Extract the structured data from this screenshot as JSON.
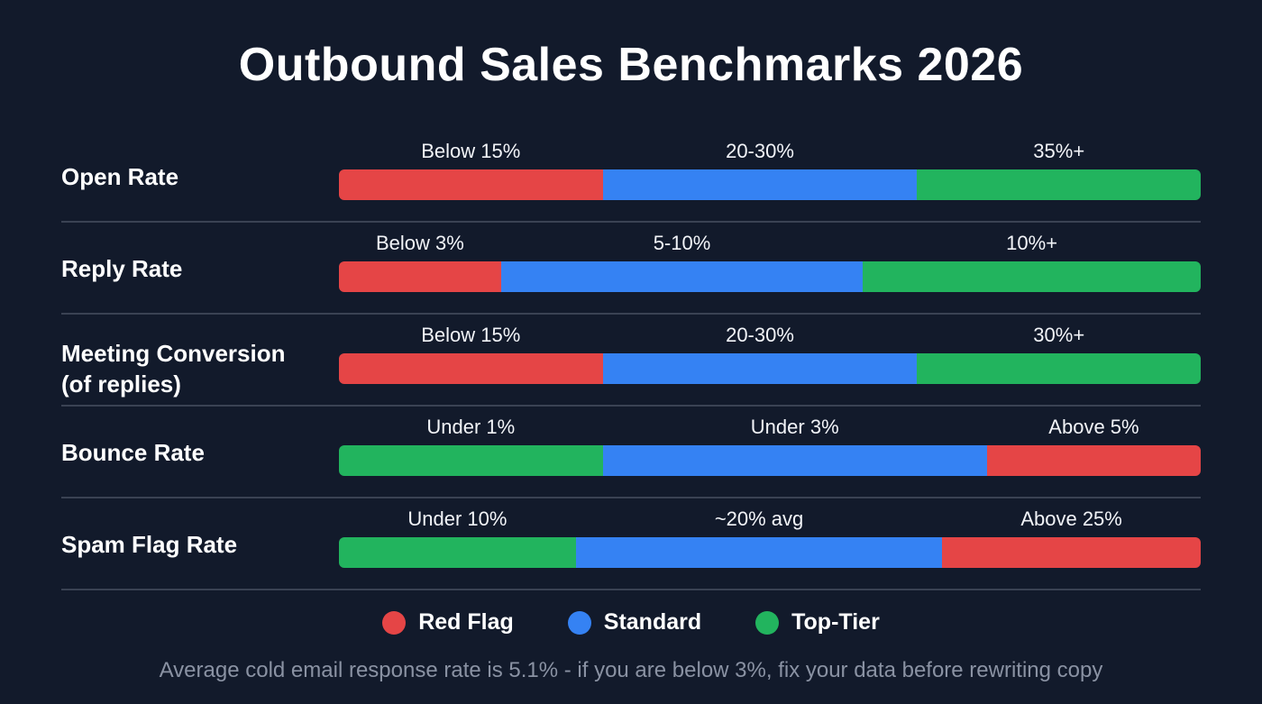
{
  "title": "Outbound Sales Benchmarks 2026",
  "colors": {
    "red_flag": "#e54546",
    "standard": "#3582f3",
    "top_tier": "#22b45e",
    "background": "#121a2b"
  },
  "chart_data": {
    "type": "bar",
    "stacked": true,
    "orientation": "horizontal",
    "title": "Outbound Sales Benchmarks 2026",
    "unit": "share of bar (%)",
    "rows": [
      {
        "label": "Open Rate",
        "segments": [
          {
            "tier": "Red Flag",
            "text": "Below 15%",
            "share": 30.6
          },
          {
            "tier": "Standard",
            "text": "20-30%",
            "share": 36.5
          },
          {
            "tier": "Top-Tier",
            "text": "35%+",
            "share": 32.9
          }
        ]
      },
      {
        "label": "Reply Rate",
        "segments": [
          {
            "tier": "Red Flag",
            "text": "Below 3%",
            "share": 18.8
          },
          {
            "tier": "Standard",
            "text": "5-10%",
            "share": 42.0
          },
          {
            "tier": "Top-Tier",
            "text": "10%+",
            "share": 39.2
          }
        ]
      },
      {
        "label": "Meeting Conversion\n(of replies)",
        "segments": [
          {
            "tier": "Red Flag",
            "text": "Below 15%",
            "share": 30.6
          },
          {
            "tier": "Standard",
            "text": "20-30%",
            "share": 36.5
          },
          {
            "tier": "Top-Tier",
            "text": "30%+",
            "share": 32.9
          }
        ]
      },
      {
        "label": "Bounce Rate",
        "segments": [
          {
            "tier": "Top-Tier",
            "text": "Under 1%",
            "share": 30.6
          },
          {
            "tier": "Standard",
            "text": "Under 3%",
            "share": 44.6
          },
          {
            "tier": "Red Flag",
            "text": "Above 5%",
            "share": 24.8
          }
        ]
      },
      {
        "label": "Spam Flag Rate",
        "segments": [
          {
            "tier": "Top-Tier",
            "text": "Under 10%",
            "share": 27.5
          },
          {
            "tier": "Standard",
            "text": "~20% avg",
            "share": 42.5
          },
          {
            "tier": "Red Flag",
            "text": "Above 25%",
            "share": 30.0
          }
        ]
      }
    ],
    "legend": [
      {
        "label": "Red Flag",
        "color": "#e54546"
      },
      {
        "label": "Standard",
        "color": "#3582f3"
      },
      {
        "label": "Top-Tier",
        "color": "#22b45e"
      }
    ],
    "legend_position": "bottom"
  },
  "footnote": "Average cold email response rate is 5.1% - if you are below 3%, fix your data before rewriting copy"
}
